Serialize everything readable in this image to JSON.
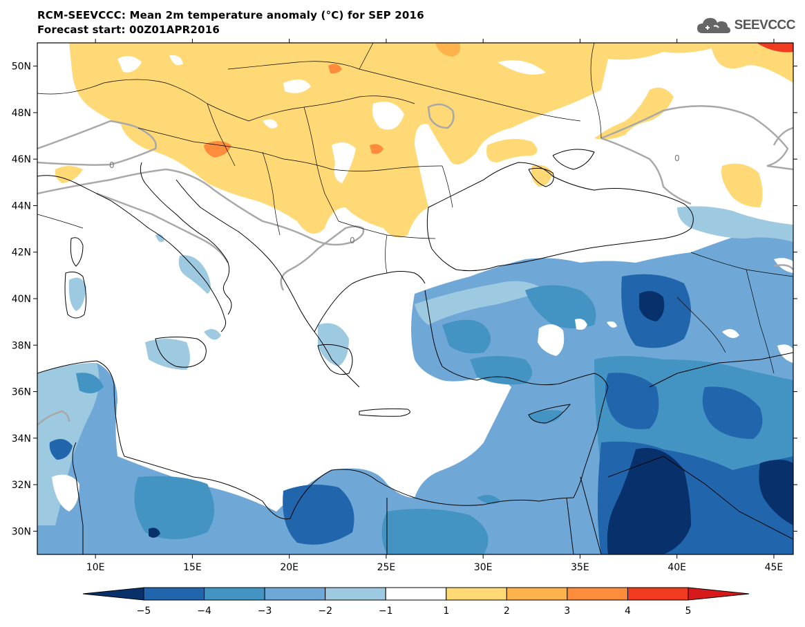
{
  "header": {
    "title_line1": "RCM-SEEVCCC: Mean 2m temperature anomaly (°C) for SEP 2016",
    "title_line2": "Forecast start: 00Z01APR2016"
  },
  "logo": {
    "text": "SEEVCCC",
    "icon": "cloud-icon"
  },
  "map": {
    "lon_range": [
      7,
      46
    ],
    "lat_range": [
      29,
      51
    ],
    "lon_ticks": [
      "10E",
      "15E",
      "20E",
      "25E",
      "30E",
      "35E",
      "40E",
      "45E"
    ],
    "lat_ticks": [
      "50N",
      "48N",
      "46N",
      "44N",
      "42N",
      "40N",
      "38N",
      "36N",
      "34N",
      "32N",
      "30N"
    ],
    "contour_label": "0"
  },
  "colorbar": {
    "labels": [
      "−5",
      "−4",
      "−3",
      "−2",
      "−1",
      "1",
      "2",
      "3",
      "4",
      "5"
    ],
    "colors": [
      "#08306b",
      "#2166ac",
      "#4393c3",
      "#6fa8d6",
      "#9ecae1",
      "#ffffff",
      "#fed976",
      "#feb24c",
      "#fd8d3c",
      "#f03b20",
      "#d7191c"
    ]
  }
}
